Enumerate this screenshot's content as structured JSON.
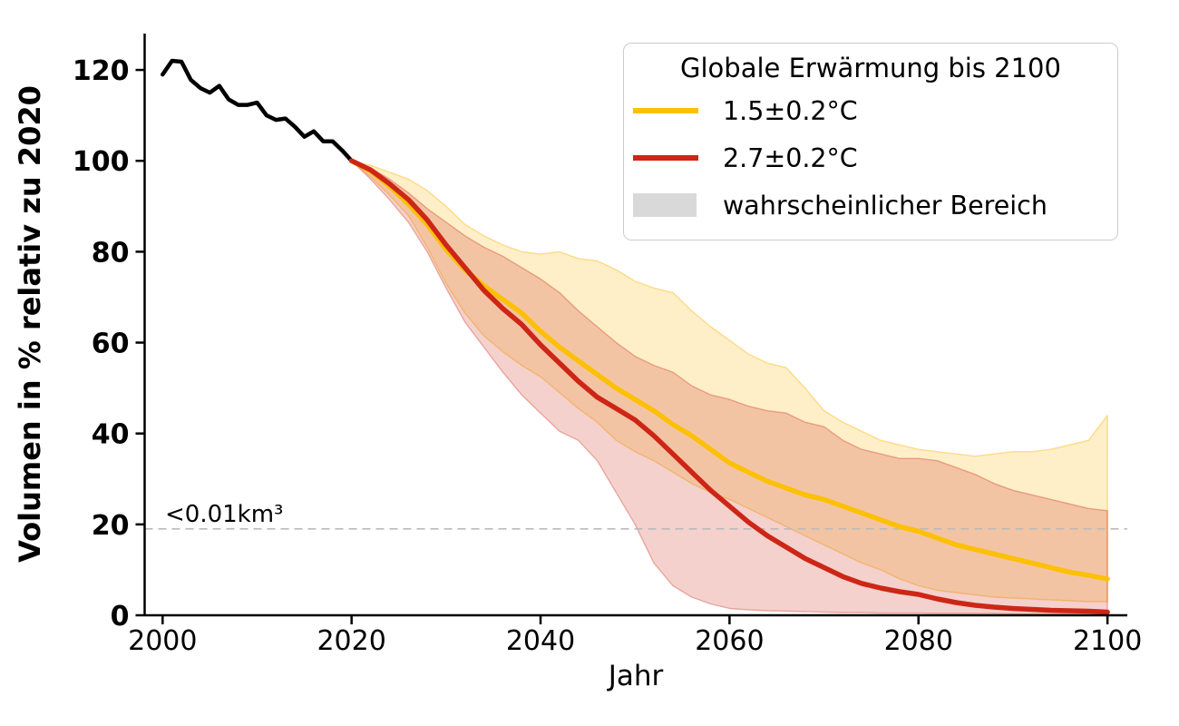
{
  "chart_data": {
    "type": "line",
    "xlabel": "Jahr",
    "ylabel": "Volumen in % relativ zu 2020",
    "xlim": [
      1998.1,
      2102.1
    ],
    "ylim": [
      0,
      128
    ],
    "x_ticks": [
      2000,
      2020,
      2040,
      2060,
      2080,
      2100
    ],
    "y_ticks": [
      0,
      20,
      40,
      60,
      80,
      100,
      120
    ],
    "grid": false,
    "threshold": {
      "value": 19,
      "label": "<0.01km³",
      "line_color": "#bababa",
      "label_color": "#b3b3b3"
    },
    "legend": {
      "title": "Globale Erwärmung bis 2100",
      "position": "upper right",
      "border_color": "#cccccc",
      "entries": [
        {
          "label": "1.5±0.2°C",
          "swatch": "line",
          "color": "#fcc006"
        },
        {
          "label": "2.7±0.2°C",
          "swatch": "line",
          "color": "#cd2617"
        },
        {
          "label": "wahrscheinlicher Bereich",
          "swatch": "patch",
          "color": "#d9d9d9"
        }
      ]
    },
    "series": [
      {
        "id": "observed",
        "color": "#000000",
        "width": 4.5,
        "x": [
          2000,
          2001,
          2002,
          2003,
          2004,
          2005,
          2006,
          2007,
          2008,
          2009,
          2010,
          2011,
          2012,
          2013,
          2014,
          2015,
          2016,
          2017,
          2018,
          2019,
          2020
        ],
        "y": [
          119,
          122,
          121.8,
          117.8,
          116,
          115,
          116.5,
          113.5,
          112.3,
          112.3,
          112.8,
          110,
          109,
          109.3,
          107.5,
          105.3,
          106.5,
          104.3,
          104.3,
          102.3,
          100
        ]
      },
      {
        "id": "scenario-1.5C",
        "color": "#fcc006",
        "width": 5.5,
        "x": [
          2020,
          2022,
          2024,
          2026,
          2028,
          2030,
          2032,
          2034,
          2036,
          2038,
          2040,
          2042,
          2044,
          2046,
          2048,
          2050,
          2052,
          2054,
          2056,
          2058,
          2060,
          2062,
          2064,
          2066,
          2068,
          2070,
          2072,
          2074,
          2076,
          2078,
          2080,
          2082,
          2084,
          2086,
          2088,
          2090,
          2092,
          2094,
          2096,
          2098,
          2100
        ],
        "y": [
          100,
          97.8,
          94.5,
          90.5,
          86,
          80.5,
          76,
          72.5,
          69.5,
          66.5,
          62.5,
          59,
          56,
          53,
          50,
          47.5,
          45,
          42,
          39.5,
          36.5,
          33.5,
          31.5,
          29.5,
          28,
          26.5,
          25.5,
          24,
          22.5,
          21,
          19.5,
          18.5,
          17,
          15.5,
          14.5,
          13.5,
          12.5,
          11.5,
          10.5,
          9.5,
          8.8,
          8
        ]
      },
      {
        "id": "scenario-2.7C",
        "color": "#cd2617",
        "width": 5.5,
        "x": [
          2020,
          2022,
          2024,
          2026,
          2028,
          2030,
          2032,
          2034,
          2036,
          2038,
          2040,
          2042,
          2044,
          2046,
          2048,
          2050,
          2052,
          2054,
          2056,
          2058,
          2060,
          2062,
          2064,
          2066,
          2068,
          2070,
          2072,
          2074,
          2076,
          2078,
          2080,
          2082,
          2084,
          2086,
          2088,
          2090,
          2092,
          2094,
          2096,
          2098,
          2100
        ],
        "y": [
          100,
          98,
          95,
          91.5,
          87,
          81.5,
          76.5,
          71.5,
          67.5,
          64,
          59.5,
          55.5,
          51.5,
          48,
          45.5,
          43,
          39.5,
          35.5,
          31.5,
          27.5,
          24,
          20.5,
          17.5,
          15,
          12.5,
          10.5,
          8.5,
          7,
          6,
          5.2,
          4.6,
          3.6,
          2.8,
          2.2,
          1.8,
          1.5,
          1.3,
          1.1,
          1.0,
          0.9,
          0.7
        ]
      }
    ],
    "bands": [
      {
        "id": "band-1.5C",
        "color": "#fbc02d",
        "fill_opacity": 0.26,
        "edge_opacity": 0.5,
        "x": [
          2020,
          2022,
          2024,
          2026,
          2028,
          2030,
          2032,
          2034,
          2036,
          2038,
          2040,
          2042,
          2044,
          2046,
          2048,
          2050,
          2052,
          2054,
          2056,
          2058,
          2060,
          2062,
          2064,
          2066,
          2068,
          2070,
          2072,
          2074,
          2076,
          2078,
          2080,
          2082,
          2084,
          2086,
          2088,
          2090,
          2092,
          2094,
          2096,
          2098,
          2100
        ],
        "high": [
          100,
          99,
          97.5,
          96,
          93.5,
          90,
          86,
          83.5,
          81.5,
          80,
          79.5,
          80,
          78.5,
          78,
          76,
          73.5,
          72,
          71,
          67,
          63.5,
          60.5,
          57.5,
          55.5,
          54.5,
          50,
          45,
          42.5,
          40.5,
          38.5,
          37.5,
          36.5,
          36,
          35.5,
          35,
          35.5,
          36,
          36,
          36.5,
          37.5,
          38.5,
          44
        ],
        "low": [
          100,
          96.5,
          92.5,
          88,
          81,
          73,
          66.5,
          61.5,
          58,
          55,
          52.5,
          49,
          45.5,
          42.5,
          38.5,
          36,
          34,
          31.5,
          29,
          27,
          25.5,
          23.5,
          21.5,
          19.5,
          17.5,
          15.5,
          13.5,
          11.5,
          10,
          8,
          6.5,
          5.5,
          5,
          4.5,
          4,
          3.8,
          3.6,
          3.4,
          3.2,
          3,
          3
        ]
      },
      {
        "id": "band-2.7C",
        "color": "#cd2f1a",
        "fill_opacity": 0.22,
        "edge_opacity": 0.35,
        "x": [
          2020,
          2022,
          2024,
          2026,
          2028,
          2030,
          2032,
          2034,
          2036,
          2038,
          2040,
          2042,
          2044,
          2046,
          2048,
          2050,
          2052,
          2054,
          2056,
          2058,
          2060,
          2062,
          2064,
          2066,
          2068,
          2070,
          2072,
          2074,
          2076,
          2078,
          2080,
          2082,
          2084,
          2086,
          2088,
          2090,
          2092,
          2094,
          2096,
          2098,
          2100
        ],
        "high": [
          100,
          98.5,
          96,
          93,
          89.5,
          86.5,
          83.5,
          81,
          79,
          76.5,
          74,
          71,
          67,
          63.5,
          60,
          57,
          55,
          53.5,
          50.5,
          48.5,
          47.5,
          46,
          45,
          44.5,
          42.5,
          41.5,
          38.5,
          36.5,
          35.5,
          34.5,
          34.5,
          34,
          32.5,
          31,
          29,
          27.5,
          26.5,
          25.5,
          24.5,
          23.5,
          23
        ],
        "low": [
          100,
          96,
          91.5,
          86.5,
          80,
          72,
          64.5,
          59,
          53.5,
          48.5,
          44.5,
          40.5,
          38.5,
          34,
          27,
          20,
          11.5,
          6.5,
          4,
          2.5,
          1.5,
          1.2,
          1.0,
          0.9,
          0.8,
          0.7,
          0.6,
          0.6,
          0.5,
          0.5,
          0.5,
          0.4,
          0.4,
          0.4,
          0.4,
          0.3,
          0.3,
          0.3,
          0.3,
          0.3,
          0.3
        ]
      }
    ]
  }
}
